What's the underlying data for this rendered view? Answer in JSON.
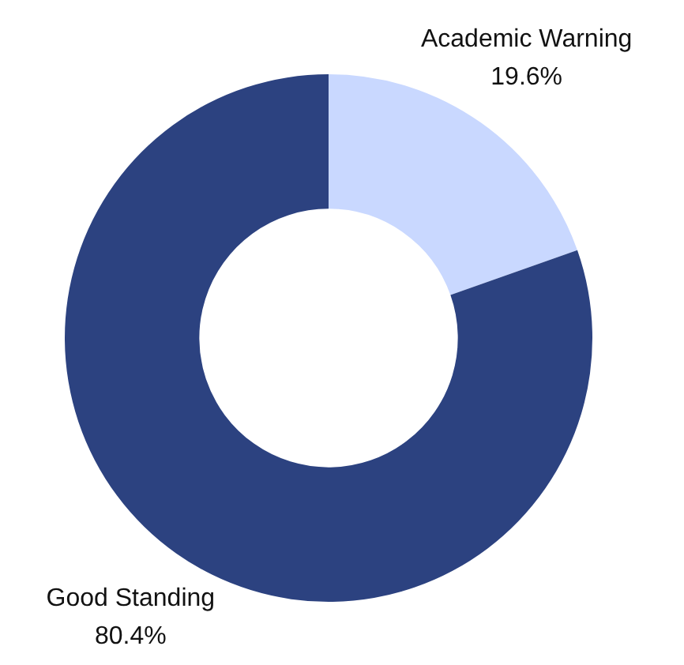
{
  "chart_data": {
    "type": "donut",
    "categories": [
      "Academic Warning",
      "Good Standing"
    ],
    "values": [
      19.6,
      80.4
    ],
    "value_labels": [
      "19.6%",
      "80.4%"
    ],
    "colors": [
      "#c9d8ff",
      "#2c4280"
    ],
    "legend": false
  }
}
